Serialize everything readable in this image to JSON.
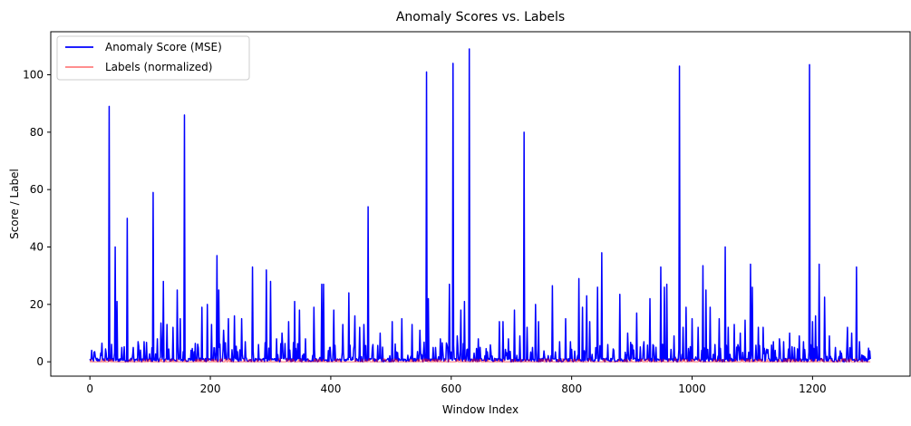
{
  "chart_data": {
    "type": "line",
    "title": "Anomaly Scores vs. Labels",
    "xlabel": "Window Index",
    "ylabel": "Score / Label",
    "xlim": [
      -65,
      1362
    ],
    "ylim": [
      -5,
      115
    ],
    "xticks": [
      0,
      200,
      400,
      600,
      800,
      1000,
      1200
    ],
    "yticks": [
      0,
      20,
      40,
      60,
      80,
      100
    ],
    "xtick_labels": [
      "0",
      "200",
      "400",
      "600",
      "800",
      "1000",
      "1200"
    ],
    "ytick_labels": [
      "0",
      "20",
      "40",
      "60",
      "80",
      "100"
    ],
    "grid": false,
    "legend_position": "top-left",
    "series": [
      {
        "name": "Anomaly Score (MSE)",
        "color": "#0000ff",
        "n_points": 1297,
        "baseline": 1.5,
        "peaks": [
          [
            3,
            4
          ],
          [
            8,
            3.5
          ],
          [
            20,
            6.5
          ],
          [
            32,
            89
          ],
          [
            42,
            40
          ],
          [
            45,
            21
          ],
          [
            53,
            5
          ],
          [
            62,
            50
          ],
          [
            72,
            5
          ],
          [
            80,
            7
          ],
          [
            90,
            7
          ],
          [
            105,
            59
          ],
          [
            112,
            8
          ],
          [
            118,
            13.5
          ],
          [
            122,
            28
          ],
          [
            128,
            13
          ],
          [
            138,
            12
          ],
          [
            145,
            25
          ],
          [
            150,
            15
          ],
          [
            157,
            86
          ],
          [
            168,
            4
          ],
          [
            180,
            5
          ],
          [
            186,
            19
          ],
          [
            195,
            20
          ],
          [
            202,
            13
          ],
          [
            211,
            37
          ],
          [
            214,
            25
          ],
          [
            222,
            11
          ],
          [
            230,
            15
          ],
          [
            240,
            16
          ],
          [
            252,
            15
          ],
          [
            258,
            7
          ],
          [
            270,
            33
          ],
          [
            280,
            6
          ],
          [
            293,
            32
          ],
          [
            300,
            28
          ],
          [
            310,
            8
          ],
          [
            319,
            10
          ],
          [
            330,
            14
          ],
          [
            340,
            21
          ],
          [
            348,
            18
          ],
          [
            358,
            8
          ],
          [
            372,
            19
          ],
          [
            385,
            27
          ],
          [
            388,
            27
          ],
          [
            398,
            5
          ],
          [
            405,
            18
          ],
          [
            420,
            13
          ],
          [
            430,
            24
          ],
          [
            440,
            16
          ],
          [
            448,
            12
          ],
          [
            455,
            13
          ],
          [
            462,
            54
          ],
          [
            470,
            6
          ],
          [
            482,
            10
          ],
          [
            502,
            14
          ],
          [
            518,
            15
          ],
          [
            535,
            13
          ],
          [
            548,
            11
          ],
          [
            559,
            101
          ],
          [
            562,
            22
          ],
          [
            570,
            5
          ],
          [
            582,
            8
          ],
          [
            597,
            27
          ],
          [
            603,
            104
          ],
          [
            610,
            9
          ],
          [
            616,
            18
          ],
          [
            622,
            21
          ],
          [
            630,
            109
          ],
          [
            638,
            3
          ],
          [
            645,
            8
          ],
          [
            668,
            2
          ],
          [
            680,
            14
          ],
          [
            686,
            14
          ],
          [
            695,
            8
          ],
          [
            705,
            18
          ],
          [
            714,
            9
          ],
          [
            721,
            80
          ],
          [
            726,
            12
          ],
          [
            740,
            20
          ],
          [
            745,
            14
          ],
          [
            755,
            2
          ],
          [
            768,
            26.5
          ],
          [
            780,
            7
          ],
          [
            790,
            15
          ],
          [
            798,
            7
          ],
          [
            812,
            29
          ],
          [
            818,
            19
          ],
          [
            825,
            23
          ],
          [
            830,
            14
          ],
          [
            843,
            26
          ],
          [
            850,
            38
          ],
          [
            860,
            6
          ],
          [
            870,
            4
          ],
          [
            880,
            23.5
          ],
          [
            893,
            10
          ],
          [
            908,
            17
          ],
          [
            920,
            7
          ],
          [
            930,
            22
          ],
          [
            948,
            33
          ],
          [
            954,
            26
          ],
          [
            958,
            27
          ],
          [
            970,
            9
          ],
          [
            979,
            103
          ],
          [
            985,
            12
          ],
          [
            990,
            19
          ],
          [
            1000,
            15
          ],
          [
            1010,
            12
          ],
          [
            1018,
            33.5
          ],
          [
            1023,
            25
          ],
          [
            1030,
            19
          ],
          [
            1038,
            6
          ],
          [
            1045,
            15
          ],
          [
            1055,
            40
          ],
          [
            1060,
            12
          ],
          [
            1070,
            13
          ],
          [
            1080,
            10
          ],
          [
            1088,
            14.5
          ],
          [
            1097,
            34
          ],
          [
            1100,
            26
          ],
          [
            1110,
            12
          ],
          [
            1118,
            12
          ],
          [
            1125,
            3
          ],
          [
            1135,
            7
          ],
          [
            1145,
            8
          ],
          [
            1152,
            7
          ],
          [
            1162,
            10
          ],
          [
            1170,
            5
          ],
          [
            1178,
            9
          ],
          [
            1185,
            7
          ],
          [
            1195,
            103.5
          ],
          [
            1200,
            14
          ],
          [
            1205,
            16
          ],
          [
            1211,
            34
          ],
          [
            1220,
            22.5
          ],
          [
            1228,
            9
          ],
          [
            1238,
            5
          ],
          [
            1248,
            3
          ],
          [
            1258,
            12
          ],
          [
            1265,
            10
          ],
          [
            1273,
            33
          ],
          [
            1278,
            7
          ],
          [
            1285,
            2
          ],
          [
            1296,
            1
          ]
        ]
      },
      {
        "name": "Labels (normalized)",
        "color": "#ff0000",
        "opacity": 0.5,
        "values_range": [
          0,
          1
        ],
        "n_points": 1297
      }
    ]
  }
}
